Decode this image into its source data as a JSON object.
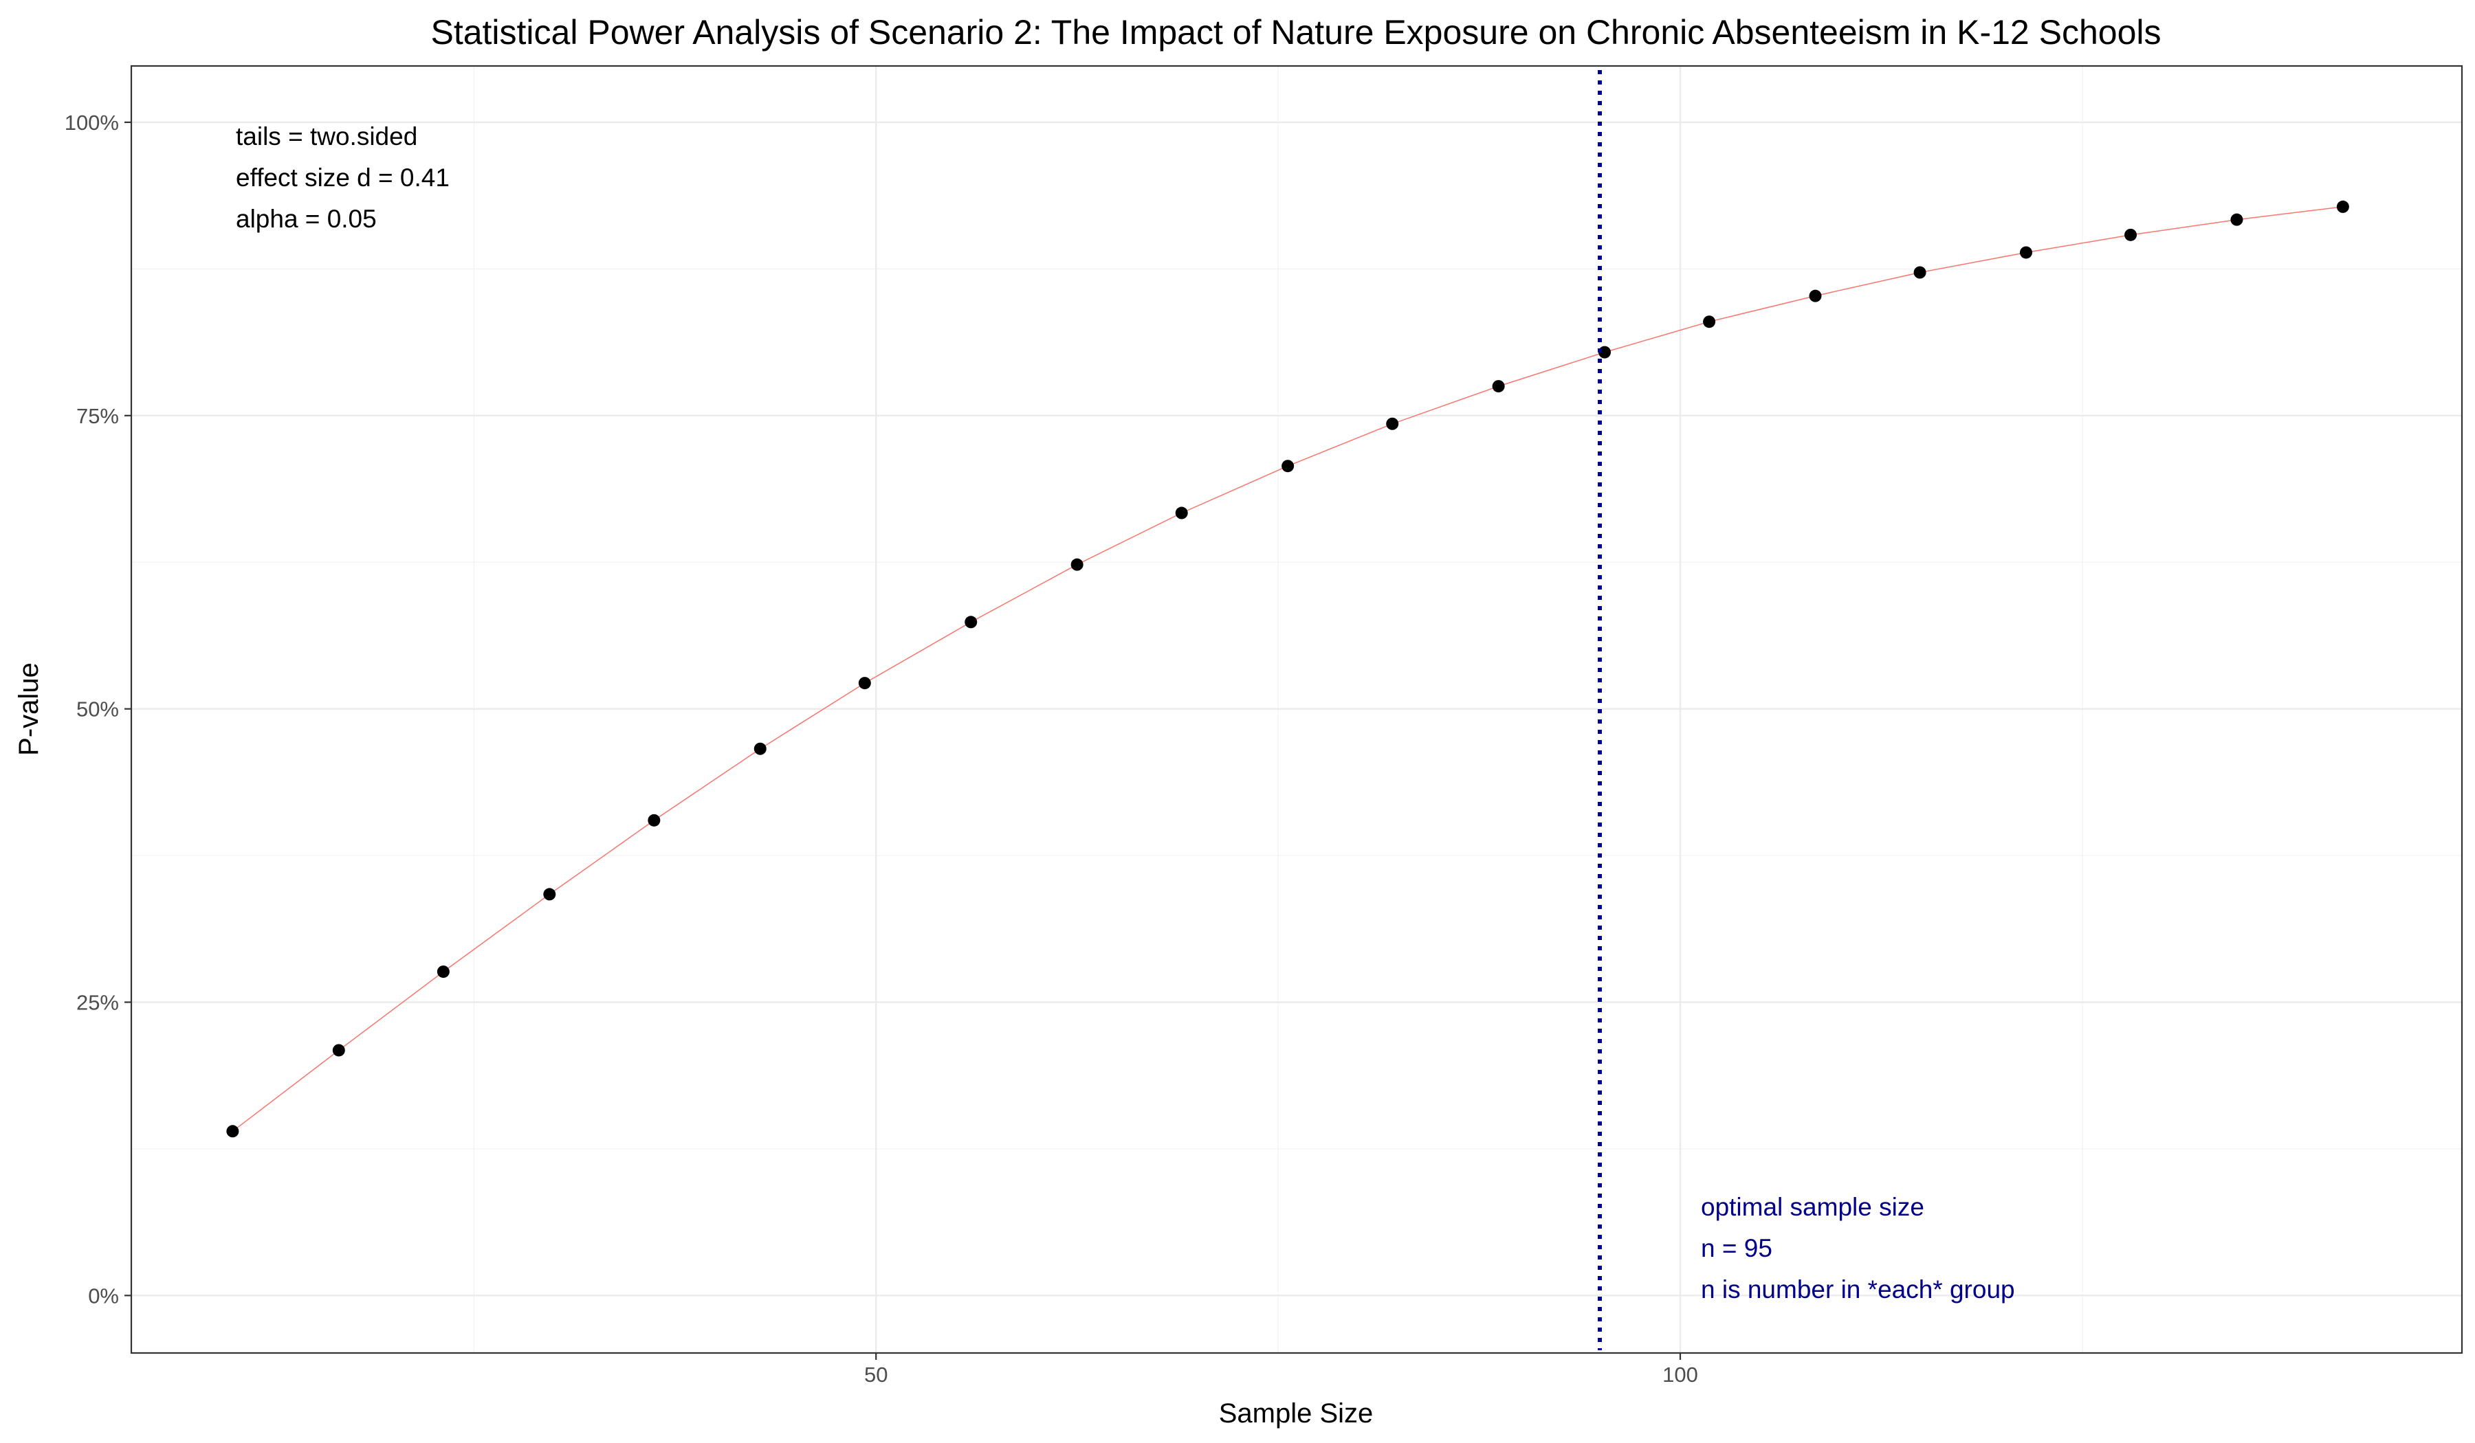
{
  "chart_data": {
    "type": "scatter",
    "title": "Statistical Power Analysis of Scenario 2: The Impact of Nature Exposure on Chronic Absenteeism in K-12 Schools",
    "xlabel": "Sample Size",
    "ylabel": "P-value",
    "xlim": [
      3.7,
      148.6
    ],
    "ylim": [
      -0.049,
      1.048
    ],
    "x_ticks": [
      50,
      100
    ],
    "x_tick_labels": [
      "50",
      "100"
    ],
    "y_ticks": [
      0,
      0.25,
      0.5,
      0.75,
      1.0
    ],
    "y_tick_labels": [
      "0%",
      "25%",
      "50%",
      "75%",
      "100%"
    ],
    "grid": true,
    "series": [
      {
        "x": [
          10,
          16.6,
          23.1,
          29.7,
          36.2,
          42.8,
          49.3,
          55.9,
          62.5,
          69,
          75.6,
          82.1,
          88.7,
          95.3,
          101.8,
          108.4,
          114.9,
          121.5,
          128,
          134.6,
          141.2
        ],
        "values": [
          0.14,
          0.209,
          0.276,
          0.342,
          0.405,
          0.466,
          0.522,
          0.574,
          0.623,
          0.667,
          0.707,
          0.743,
          0.775,
          0.804,
          0.83,
          0.852,
          0.872,
          0.889,
          0.904,
          0.917,
          0.928
        ],
        "line_color": "#f8766d",
        "point_color": "#000000"
      }
    ],
    "reference_line": {
      "x": 95,
      "color": "#00008b",
      "style": "dotted"
    },
    "annotations": {
      "parameters": [
        "tails = two.sided",
        "effect size d = 0.41",
        "alpha = 0.05"
      ],
      "optimal": [
        "optimal sample size",
        "n = 95",
        "n is number in *each* group"
      ]
    },
    "colors": {
      "annotation_params": "#000000",
      "annotation_optimal": "#00008b"
    }
  }
}
